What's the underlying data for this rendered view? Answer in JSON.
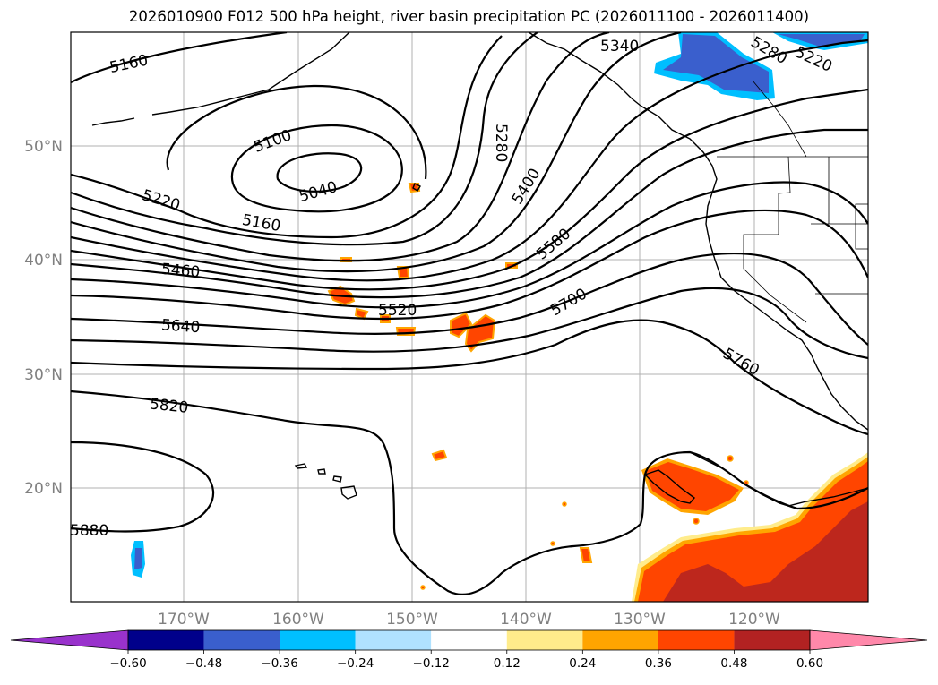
{
  "title": "2026010900 F012 500 hPa height, river basin precipitation PC (2026011100 - 2026011400)",
  "lat_labels": [
    "50°N",
    "40°N",
    "30°N",
    "20°N"
  ],
  "lon_labels": [
    "170°W",
    "160°W",
    "150°W",
    "140°W",
    "130°W",
    "120°W"
  ],
  "contour_labels": [
    "5160",
    "5100",
    "5040",
    "5220",
    "5160",
    "5280",
    "5340",
    "5280",
    "5220",
    "5400",
    "5460",
    "5580",
    "5520",
    "5700",
    "5640",
    "5760",
    "5820",
    "5880"
  ],
  "colorbar": {
    "ticks": [
      "−0.60",
      "−0.48",
      "−0.36",
      "−0.24",
      "−0.12",
      "0.12",
      "0.24",
      "0.36",
      "0.48",
      "0.60"
    ],
    "colors": [
      "#9932cc",
      "#00008b",
      "#3a5fcd",
      "#00bfff",
      "#b0e2ff",
      "#ffffff",
      "#ffec8b",
      "#ffa500",
      "#ff4500",
      "#b22222",
      "#ff88aa"
    ]
  },
  "precip_colors": {
    "orange": "#ffa500",
    "red_orange": "#ff4500",
    "dark_red": "#b22222",
    "light_yellow": "#ffec8b",
    "blue": "#3a5fcd",
    "light_blue": "#00bfff"
  }
}
